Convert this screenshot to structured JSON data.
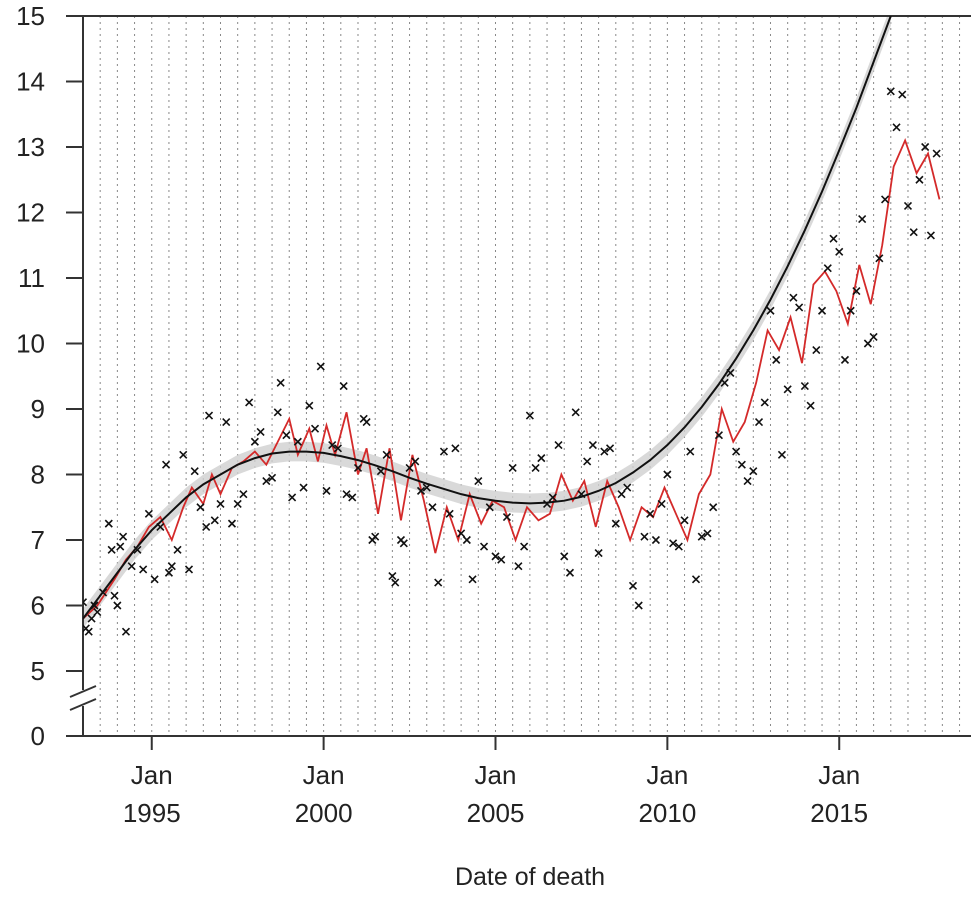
{
  "chart_data": {
    "type": "scatter",
    "title": "",
    "xlabel": "Date of death",
    "ylabel": "",
    "xlim": [
      "1993-01",
      "2018-11"
    ],
    "ylim": [
      0,
      15
    ],
    "y_axis_break": "between 0 and 5",
    "yticks": [
      0,
      5,
      6,
      7,
      8,
      9,
      10,
      11,
      12,
      13,
      14,
      15
    ],
    "xticks": [
      {
        "date": "1995-01",
        "label_top": "Jan",
        "label_bottom": "1995"
      },
      {
        "date": "2000-01",
        "label_top": "Jan",
        "label_bottom": "2000"
      },
      {
        "date": "2005-01",
        "label_top": "Jan",
        "label_bottom": "2005"
      },
      {
        "date": "2010-01",
        "label_top": "Jan",
        "label_bottom": "2010"
      },
      {
        "date": "2015-01",
        "label_top": "Jan",
        "label_bottom": "2015"
      }
    ],
    "grid": "dotted vertical lines at each January",
    "series": [
      {
        "kind": "points",
        "marker": "x",
        "color": "#111111",
        "points": [
          [
            "1993-01",
            6.05
          ],
          [
            "1993-02",
            5.65
          ],
          [
            "1993-03",
            5.6
          ],
          [
            "1993-04",
            5.8
          ],
          [
            "1993-05",
            6.0
          ],
          [
            "1993-06",
            5.9
          ],
          [
            "1993-08",
            6.2
          ],
          [
            "1993-10",
            7.25
          ],
          [
            "1993-11",
            6.85
          ],
          [
            "1993-12",
            6.15
          ],
          [
            "1994-01",
            6.0
          ],
          [
            "1994-02",
            6.9
          ],
          [
            "1994-03",
            7.05
          ],
          [
            "1994-04",
            5.6
          ],
          [
            "1994-06",
            6.6
          ],
          [
            "1994-08",
            6.85
          ],
          [
            "1994-10",
            6.55
          ],
          [
            "1994-12",
            7.4
          ],
          [
            "1995-02",
            6.4
          ],
          [
            "1995-04",
            7.2
          ],
          [
            "1995-06",
            8.15
          ],
          [
            "1995-07",
            6.5
          ],
          [
            "1995-08",
            6.6
          ],
          [
            "1995-10",
            6.85
          ],
          [
            "1995-12",
            8.3
          ],
          [
            "1996-02",
            6.55
          ],
          [
            "1996-04",
            8.05
          ],
          [
            "1996-06",
            7.5
          ],
          [
            "1996-08",
            7.2
          ],
          [
            "1996-09",
            8.9
          ],
          [
            "1996-11",
            7.3
          ],
          [
            "1997-01",
            7.55
          ],
          [
            "1997-03",
            8.8
          ],
          [
            "1997-05",
            7.25
          ],
          [
            "1997-07",
            7.55
          ],
          [
            "1997-09",
            7.7
          ],
          [
            "1997-11",
            9.1
          ],
          [
            "1998-01",
            8.5
          ],
          [
            "1998-03",
            8.65
          ],
          [
            "1998-05",
            7.9
          ],
          [
            "1998-07",
            7.95
          ],
          [
            "1998-09",
            8.95
          ],
          [
            "1998-10",
            9.4
          ],
          [
            "1998-12",
            8.6
          ],
          [
            "1999-02",
            7.65
          ],
          [
            "1999-04",
            8.5
          ],
          [
            "1999-06",
            7.8
          ],
          [
            "1999-08",
            9.05
          ],
          [
            "1999-10",
            8.7
          ],
          [
            "1999-12",
            9.65
          ],
          [
            "2000-02",
            7.75
          ],
          [
            "2000-04",
            8.45
          ],
          [
            "2000-06",
            8.4
          ],
          [
            "2000-08",
            9.35
          ],
          [
            "2000-09",
            7.7
          ],
          [
            "2000-11",
            7.65
          ],
          [
            "2001-01",
            8.1
          ],
          [
            "2001-03",
            8.85
          ],
          [
            "2001-04",
            8.8
          ],
          [
            "2001-06",
            7.0
          ],
          [
            "2001-07",
            7.05
          ],
          [
            "2001-09",
            8.05
          ],
          [
            "2001-11",
            8.3
          ],
          [
            "2002-01",
            6.45
          ],
          [
            "2002-02",
            6.35
          ],
          [
            "2002-04",
            7.0
          ],
          [
            "2002-05",
            6.95
          ],
          [
            "2002-07",
            8.1
          ],
          [
            "2002-09",
            8.2
          ],
          [
            "2002-11",
            7.75
          ],
          [
            "2003-01",
            7.8
          ],
          [
            "2003-03",
            7.5
          ],
          [
            "2003-05",
            6.35
          ],
          [
            "2003-07",
            8.35
          ],
          [
            "2003-09",
            7.4
          ],
          [
            "2003-11",
            8.4
          ],
          [
            "2004-01",
            7.1
          ],
          [
            "2004-03",
            7.0
          ],
          [
            "2004-05",
            6.4
          ],
          [
            "2004-07",
            7.9
          ],
          [
            "2004-09",
            6.9
          ],
          [
            "2004-11",
            7.5
          ],
          [
            "2005-01",
            6.75
          ],
          [
            "2005-03",
            6.7
          ],
          [
            "2005-05",
            7.35
          ],
          [
            "2005-07",
            8.1
          ],
          [
            "2005-09",
            6.6
          ],
          [
            "2005-11",
            6.9
          ],
          [
            "2006-01",
            8.9
          ],
          [
            "2006-03",
            8.1
          ],
          [
            "2006-05",
            8.25
          ],
          [
            "2006-07",
            7.55
          ],
          [
            "2006-09",
            7.65
          ],
          [
            "2006-11",
            8.45
          ],
          [
            "2007-01",
            6.75
          ],
          [
            "2007-03",
            6.5
          ],
          [
            "2007-05",
            8.95
          ],
          [
            "2007-07",
            7.7
          ],
          [
            "2007-09",
            8.2
          ],
          [
            "2007-11",
            8.45
          ],
          [
            "2008-01",
            6.8
          ],
          [
            "2008-03",
            8.35
          ],
          [
            "2008-05",
            8.4
          ],
          [
            "2008-07",
            7.25
          ],
          [
            "2008-09",
            7.7
          ],
          [
            "2008-11",
            7.8
          ],
          [
            "2009-01",
            6.3
          ],
          [
            "2009-03",
            6.0
          ],
          [
            "2009-05",
            7.05
          ],
          [
            "2009-07",
            7.4
          ],
          [
            "2009-09",
            7.0
          ],
          [
            "2009-11",
            7.55
          ],
          [
            "2010-01",
            8.0
          ],
          [
            "2010-03",
            6.95
          ],
          [
            "2010-05",
            6.9
          ],
          [
            "2010-07",
            7.3
          ],
          [
            "2010-09",
            8.35
          ],
          [
            "2010-11",
            6.4
          ],
          [
            "2011-01",
            7.05
          ],
          [
            "2011-03",
            7.1
          ],
          [
            "2011-05",
            7.5
          ],
          [
            "2011-07",
            8.6
          ],
          [
            "2011-09",
            9.4
          ],
          [
            "2011-11",
            9.55
          ],
          [
            "2012-01",
            8.35
          ],
          [
            "2012-03",
            8.15
          ],
          [
            "2012-05",
            7.9
          ],
          [
            "2012-07",
            8.05
          ],
          [
            "2012-09",
            8.8
          ],
          [
            "2012-11",
            9.1
          ],
          [
            "2013-01",
            10.5
          ],
          [
            "2013-03",
            9.75
          ],
          [
            "2013-05",
            8.3
          ],
          [
            "2013-07",
            9.3
          ],
          [
            "2013-09",
            10.7
          ],
          [
            "2013-11",
            10.55
          ],
          [
            "2014-01",
            9.35
          ],
          [
            "2014-03",
            9.05
          ],
          [
            "2014-05",
            9.9
          ],
          [
            "2014-07",
            10.5
          ],
          [
            "2014-09",
            11.15
          ],
          [
            "2014-11",
            11.6
          ],
          [
            "2015-01",
            11.4
          ],
          [
            "2015-03",
            9.75
          ],
          [
            "2015-05",
            10.5
          ],
          [
            "2015-07",
            10.8
          ],
          [
            "2015-09",
            11.9
          ],
          [
            "2015-11",
            10.0
          ],
          [
            "2016-01",
            10.1
          ],
          [
            "2016-03",
            11.3
          ],
          [
            "2016-05",
            12.2
          ],
          [
            "2016-07",
            13.85
          ],
          [
            "2016-09",
            13.3
          ],
          [
            "2016-11",
            13.8
          ],
          [
            "2017-01",
            12.1
          ],
          [
            "2017-03",
            11.7
          ],
          [
            "2017-05",
            12.5
          ],
          [
            "2017-07",
            13.0
          ],
          [
            "2017-09",
            11.65
          ],
          [
            "2017-11",
            12.9
          ]
        ]
      },
      {
        "kind": "line",
        "name": "",
        "color": "#d42a2a",
        "values": [
          [
            "1993-01",
            5.8
          ],
          [
            "1993-06",
            6.0
          ],
          [
            "1993-12",
            6.4
          ],
          [
            "1994-04",
            6.7
          ],
          [
            "1994-08",
            6.9
          ],
          [
            "1994-12",
            7.2
          ],
          [
            "1995-04",
            7.35
          ],
          [
            "1995-08",
            7.0
          ],
          [
            "1995-12",
            7.5
          ],
          [
            "1996-03",
            7.8
          ],
          [
            "1996-07",
            7.55
          ],
          [
            "1996-10",
            8.0
          ],
          [
            "1997-01",
            7.7
          ],
          [
            "1997-05",
            8.1
          ],
          [
            "1997-09",
            8.2
          ],
          [
            "1998-01",
            8.35
          ],
          [
            "1998-05",
            8.15
          ],
          [
            "1998-09",
            8.5
          ],
          [
            "1999-01",
            8.85
          ],
          [
            "1999-04",
            8.3
          ],
          [
            "1999-08",
            8.7
          ],
          [
            "1999-11",
            8.2
          ],
          [
            "2000-02",
            8.75
          ],
          [
            "2000-05",
            8.3
          ],
          [
            "2000-09",
            8.95
          ],
          [
            "2001-01",
            8.0
          ],
          [
            "2001-04",
            8.4
          ],
          [
            "2001-08",
            7.4
          ],
          [
            "2001-12",
            8.4
          ],
          [
            "2002-04",
            7.3
          ],
          [
            "2002-08",
            8.3
          ],
          [
            "2002-12",
            7.6
          ],
          [
            "2003-04",
            6.8
          ],
          [
            "2003-08",
            7.5
          ],
          [
            "2003-12",
            7.0
          ],
          [
            "2004-04",
            7.7
          ],
          [
            "2004-08",
            7.25
          ],
          [
            "2004-12",
            7.6
          ],
          [
            "2005-04",
            7.5
          ],
          [
            "2005-08",
            7.0
          ],
          [
            "2005-12",
            7.5
          ],
          [
            "2006-04",
            7.3
          ],
          [
            "2006-08",
            7.4
          ],
          [
            "2006-12",
            8.0
          ],
          [
            "2007-04",
            7.6
          ],
          [
            "2007-08",
            7.9
          ],
          [
            "2007-12",
            7.2
          ],
          [
            "2008-04",
            7.9
          ],
          [
            "2008-08",
            7.5
          ],
          [
            "2008-12",
            7.0
          ],
          [
            "2009-04",
            7.5
          ],
          [
            "2009-08",
            7.35
          ],
          [
            "2009-12",
            7.8
          ],
          [
            "2010-04",
            7.4
          ],
          [
            "2010-08",
            7.0
          ],
          [
            "2010-12",
            7.7
          ],
          [
            "2011-04",
            8.0
          ],
          [
            "2011-08",
            9.0
          ],
          [
            "2011-12",
            8.5
          ],
          [
            "2012-04",
            8.8
          ],
          [
            "2012-08",
            9.4
          ],
          [
            "2012-12",
            10.2
          ],
          [
            "2013-04",
            9.9
          ],
          [
            "2013-08",
            10.4
          ],
          [
            "2013-12",
            9.7
          ],
          [
            "2014-04",
            10.9
          ],
          [
            "2014-08",
            11.1
          ],
          [
            "2014-12",
            10.8
          ],
          [
            "2015-04",
            10.3
          ],
          [
            "2015-08",
            11.2
          ],
          [
            "2015-12",
            10.6
          ],
          [
            "2016-04",
            11.5
          ],
          [
            "2016-08",
            12.7
          ],
          [
            "2016-12",
            13.1
          ],
          [
            "2017-04",
            12.6
          ],
          [
            "2017-08",
            12.9
          ],
          [
            "2017-12",
            12.2
          ]
        ]
      },
      {
        "kind": "line",
        "name": "",
        "color": "#111111",
        "confidence_band_color": "#d0d0d0",
        "values": [
          [
            "1993-01",
            5.8
          ],
          [
            "1993-07",
            6.15
          ],
          [
            "1994-01",
            6.5
          ],
          [
            "1994-07",
            6.85
          ],
          [
            "1995-01",
            7.15
          ],
          [
            "1995-07",
            7.4
          ],
          [
            "1996-01",
            7.65
          ],
          [
            "1996-07",
            7.85
          ],
          [
            "1997-01",
            8.0
          ],
          [
            "1997-07",
            8.15
          ],
          [
            "1998-01",
            8.25
          ],
          [
            "1998-07",
            8.32
          ],
          [
            "1999-01",
            8.35
          ],
          [
            "1999-07",
            8.35
          ],
          [
            "2000-01",
            8.33
          ],
          [
            "2000-07",
            8.28
          ],
          [
            "2001-01",
            8.22
          ],
          [
            "2001-07",
            8.14
          ],
          [
            "2002-01",
            8.05
          ],
          [
            "2002-07",
            7.95
          ],
          [
            "2003-01",
            7.86
          ],
          [
            "2003-07",
            7.78
          ],
          [
            "2004-01",
            7.7
          ],
          [
            "2004-07",
            7.64
          ],
          [
            "2005-01",
            7.6
          ],
          [
            "2005-07",
            7.57
          ],
          [
            "2006-01",
            7.56
          ],
          [
            "2006-07",
            7.57
          ],
          [
            "2007-01",
            7.6
          ],
          [
            "2007-07",
            7.66
          ],
          [
            "2008-01",
            7.75
          ],
          [
            "2008-07",
            7.87
          ],
          [
            "2009-01",
            8.03
          ],
          [
            "2009-07",
            8.22
          ],
          [
            "2010-01",
            8.45
          ],
          [
            "2010-07",
            8.72
          ],
          [
            "2011-01",
            9.03
          ],
          [
            "2011-07",
            9.38
          ],
          [
            "2012-01",
            9.77
          ],
          [
            "2012-07",
            10.2
          ],
          [
            "2013-01",
            10.67
          ],
          [
            "2013-07",
            11.18
          ],
          [
            "2014-01",
            11.73
          ],
          [
            "2014-07",
            12.32
          ],
          [
            "2015-01",
            12.95
          ],
          [
            "2015-07",
            13.6
          ],
          [
            "2016-01",
            14.3
          ],
          [
            "2016-07",
            15.0
          ]
        ],
        "band_halfwidth": 0.15
      }
    ]
  }
}
